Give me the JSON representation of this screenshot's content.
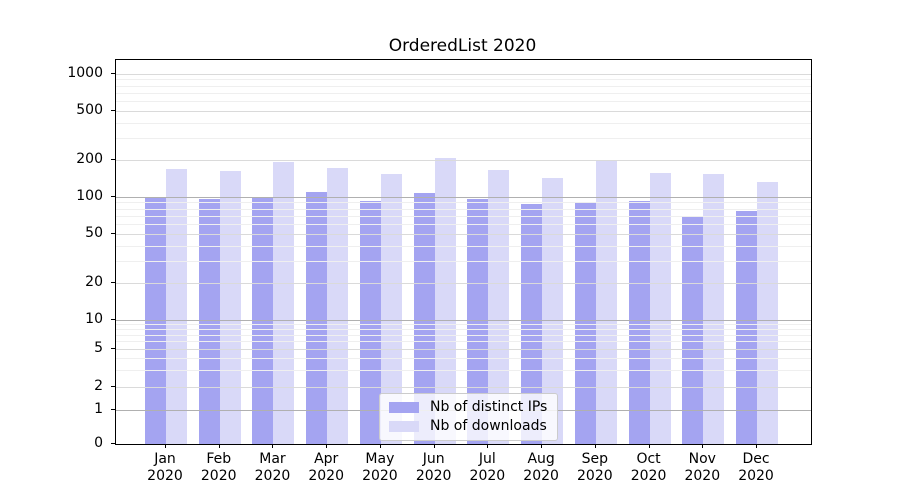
{
  "title": "OrderedList 2020",
  "colors": {
    "ips_bar": "#a4a4f1",
    "downloads_bar": "#d9d9f8",
    "grid_major": "#dadada",
    "grid_decade": "#b0b0b0",
    "grid_minor": "#efefef",
    "axis": "#000000"
  },
  "legend": {
    "items": [
      {
        "label": "Nb of distinct IPs",
        "series": "ips"
      },
      {
        "label": "Nb of downloads",
        "series": "downloads"
      }
    ]
  },
  "y_axis": {
    "ticks": [
      {
        "v": 1000,
        "label": "1000"
      },
      {
        "v": 500,
        "label": "500"
      },
      {
        "v": 200,
        "label": "200"
      },
      {
        "v": 100,
        "label": "100"
      },
      {
        "v": 50,
        "label": "50"
      },
      {
        "v": 20,
        "label": "20"
      },
      {
        "v": 10,
        "label": "10"
      },
      {
        "v": 5,
        "label": "5"
      },
      {
        "v": 2,
        "label": "2"
      },
      {
        "v": 1,
        "label": "1"
      },
      {
        "v": 0,
        "label": "0"
      }
    ],
    "minor_ticks": [
      900,
      800,
      700,
      600,
      400,
      300,
      90,
      80,
      70,
      60,
      40,
      30,
      9,
      8,
      7,
      6,
      4,
      3
    ]
  },
  "chart_data": {
    "type": "bar",
    "title": "OrderedList 2020",
    "yscale": "symlog",
    "grid": true,
    "legend_position": "lower center",
    "categories": [
      "Jan 2020",
      "Feb 2020",
      "Mar 2020",
      "Apr 2020",
      "May 2020",
      "Jun 2020",
      "Jul 2020",
      "Aug 2020",
      "Sep 2020",
      "Oct 2020",
      "Nov 2020",
      "Dec 2020"
    ],
    "series": [
      {
        "name": "Nb of distinct IPs",
        "key": "ips",
        "values": [
          100,
          95,
          100,
          110,
          93,
          107,
          95,
          88,
          90,
          93,
          70,
          76
        ]
      },
      {
        "name": "Nb of downloads",
        "key": "downloads",
        "values": [
          167,
          163,
          193,
          172,
          152,
          205,
          164,
          142,
          197,
          155,
          153,
          132
        ]
      }
    ],
    "y_ticks": [
      0,
      1,
      2,
      5,
      10,
      20,
      50,
      100,
      200,
      500,
      1000
    ]
  }
}
